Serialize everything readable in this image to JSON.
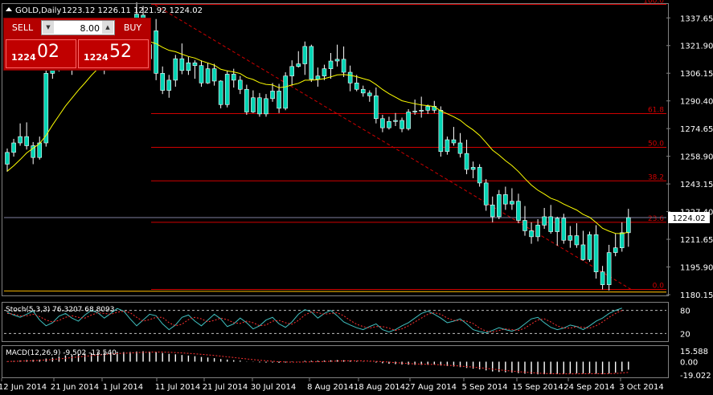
{
  "header": {
    "symbol": "GOLD,Daily",
    "ohlc": "1223.12 1226.11 1221.92 1224.02"
  },
  "trade_panel": {
    "sell_label": "SELL",
    "buy_label": "BUY",
    "lot": "8.00",
    "sell_small": "1224",
    "sell_big": "02",
    "buy_small": "1224",
    "buy_big": "52"
  },
  "colors": {
    "bull": "#00d4b4",
    "bear": "#00d4b4",
    "ma": "#ffff00",
    "fib": "#d00000",
    "trend": "#d00000",
    "stoch_main": "#40c0c0",
    "stoch_signal": "#ff3030",
    "macd_hist": "#ffffff",
    "macd_signal": "#ff3030",
    "bid_line": "#8080a0"
  },
  "chart_data": {
    "type": "candlestick",
    "price_axis": {
      "labels": [
        "1337.65",
        "1321.90",
        "1306.15",
        "1290.40",
        "1274.65",
        "1258.90",
        "1243.15",
        "1227.40",
        "1211.65",
        "1195.90",
        "1180.15"
      ],
      "min": 1180.15,
      "max": 1346.0
    },
    "current_price": "1224.02",
    "time_labels": [
      "12 Jun 2014",
      "21 Jun 2014",
      "1 Jul 2014",
      "11 Jul 2014",
      "21 Jul 2014",
      "30 Jul 2014",
      "8 Aug 2014",
      "18 Aug 2014",
      "27 Aug 2014",
      "5 Sep 2014",
      "15 Sep 2014",
      "24 Sep 2014",
      "3 Oct 2014"
    ],
    "fib_levels": [
      {
        "label": "100.0",
        "price": 1345.3
      },
      {
        "label": "61.8",
        "price": 1283.2
      },
      {
        "label": "50.0",
        "price": 1264.0
      },
      {
        "label": "38.2",
        "price": 1244.9
      },
      {
        "label": "23.6",
        "price": 1221.3
      },
      {
        "label": "0.0",
        "price": 1183.1
      }
    ],
    "candles": [
      [
        1254.4,
        1263.3,
        1250.1,
        1261.1
      ],
      [
        1261.1,
        1268.8,
        1258.7,
        1266.5
      ],
      [
        1266.5,
        1277.6,
        1264.9,
        1270.1
      ],
      [
        1270.1,
        1278.2,
        1262.7,
        1264.9
      ],
      [
        1264.9,
        1267.0,
        1254.4,
        1258.2
      ],
      [
        1258.2,
        1270.1,
        1257.0,
        1266.5
      ],
      [
        1266.5,
        1311.5,
        1264.4,
        1306.1
      ],
      [
        1306.1,
        1320.3,
        1303.0,
        1316.6
      ],
      [
        1316.6,
        1321.9,
        1307.2,
        1312.1
      ],
      [
        1312.1,
        1324.2,
        1310.0,
        1319.8
      ],
      [
        1319.8,
        1323.6,
        1305.2,
        1315.0
      ],
      [
        1315.0,
        1324.2,
        1311.5,
        1319.8
      ],
      [
        1319.8,
        1321.4,
        1310.5,
        1317.1
      ],
      [
        1317.1,
        1329.2,
        1313.1,
        1322.4
      ],
      [
        1322.4,
        1331.3,
        1319.8,
        1324.2
      ],
      [
        1324.2,
        1325.3,
        1305.6,
        1320.3
      ],
      [
        1320.3,
        1330.3,
        1316.1,
        1327.0
      ],
      [
        1327.0,
        1331.8,
        1315.5,
        1320.9
      ],
      [
        1320.9,
        1326.4,
        1310.5,
        1314.1
      ],
      [
        1314.1,
        1330.3,
        1308.7,
        1327.7
      ],
      [
        1327.0,
        1346.5,
        1322.4,
        1339.8
      ],
      [
        1339.2,
        1344.4,
        1320.3,
        1322.4
      ],
      [
        1322.4,
        1329.7,
        1312.1,
        1314.4
      ],
      [
        1330.3,
        1337.0,
        1302.2,
        1306.1
      ],
      [
        1306.1,
        1310.0,
        1294.3,
        1296.4
      ],
      [
        1296.4,
        1305.2,
        1292.2,
        1302.2
      ],
      [
        1302.2,
        1316.6,
        1298.5,
        1314.4
      ],
      [
        1314.4,
        1323.1,
        1305.6,
        1307.7
      ],
      [
        1307.7,
        1315.5,
        1305.2,
        1312.1
      ],
      [
        1312.1,
        1313.5,
        1303.0,
        1310.5
      ],
      [
        1310.5,
        1313.5,
        1298.5,
        1300.6
      ],
      [
        1300.6,
        1312.1,
        1300.1,
        1308.7
      ],
      [
        1308.7,
        1311.5,
        1299.1,
        1301.7
      ],
      [
        1301.7,
        1302.2,
        1286.2,
        1288.3
      ],
      [
        1288.3,
        1307.7,
        1286.7,
        1305.6
      ],
      [
        1305.6,
        1308.7,
        1298.0,
        1302.2
      ],
      [
        1302.2,
        1304.6,
        1294.3,
        1297.0
      ],
      [
        1297.0,
        1299.6,
        1282.5,
        1284.1
      ],
      [
        1284.1,
        1296.4,
        1283.5,
        1292.2
      ],
      [
        1292.2,
        1294.9,
        1281.4,
        1283.0
      ],
      [
        1283.0,
        1294.3,
        1281.4,
        1291.7
      ],
      [
        1291.7,
        1300.6,
        1289.9,
        1296.0
      ],
      [
        1296.0,
        1300.1,
        1283.5,
        1286.2
      ],
      [
        1286.2,
        1306.7,
        1285.1,
        1304.6
      ],
      [
        1304.6,
        1313.5,
        1299.1,
        1310.0
      ],
      [
        1310.0,
        1318.7,
        1309.4,
        1311.5
      ],
      [
        1311.5,
        1324.2,
        1305.2,
        1321.4
      ],
      [
        1321.4,
        1322.4,
        1301.2,
        1302.7
      ],
      [
        1302.7,
        1309.4,
        1298.5,
        1304.6
      ],
      [
        1304.6,
        1311.0,
        1302.2,
        1308.7
      ],
      [
        1308.7,
        1317.7,
        1303.0,
        1313.1
      ],
      [
        1313.1,
        1322.4,
        1310.0,
        1314.1
      ],
      [
        1314.1,
        1321.4,
        1304.0,
        1306.7
      ],
      [
        1306.7,
        1310.5,
        1295.9,
        1300.6
      ],
      [
        1300.6,
        1305.2,
        1295.9,
        1297.0
      ],
      [
        1297.0,
        1299.1,
        1292.8,
        1294.9
      ],
      [
        1294.9,
        1296.4,
        1289.9,
        1293.3
      ],
      [
        1293.3,
        1298.0,
        1277.6,
        1280.3
      ],
      [
        1280.3,
        1282.5,
        1272.6,
        1275.1
      ],
      [
        1275.1,
        1281.4,
        1274.1,
        1278.7
      ],
      [
        1278.7,
        1283.5,
        1276.1,
        1279.3
      ],
      [
        1279.3,
        1280.9,
        1272.6,
        1274.6
      ],
      [
        1274.6,
        1285.7,
        1273.6,
        1284.1
      ],
      [
        1284.1,
        1291.2,
        1282.5,
        1284.6
      ],
      [
        1284.6,
        1292.8,
        1280.9,
        1285.1
      ],
      [
        1285.1,
        1288.3,
        1283.0,
        1287.3
      ],
      [
        1287.3,
        1290.4,
        1283.5,
        1285.1
      ],
      [
        1285.1,
        1287.3,
        1258.7,
        1261.6
      ],
      [
        1261.6,
        1270.1,
        1259.8,
        1268.3
      ],
      [
        1268.3,
        1275.6,
        1264.9,
        1266.5
      ],
      [
        1266.5,
        1272.1,
        1258.2,
        1260.5
      ],
      [
        1260.5,
        1268.3,
        1248.7,
        1251.4
      ],
      [
        1251.4,
        1255.9,
        1246.4,
        1252.6
      ],
      [
        1252.6,
        1254.4,
        1241.6,
        1243.7
      ],
      [
        1243.7,
        1245.9,
        1227.9,
        1231.2
      ],
      [
        1231.2,
        1236.0,
        1221.3,
        1224.5
      ],
      [
        1224.5,
        1239.7,
        1223.1,
        1237.1
      ],
      [
        1237.1,
        1241.6,
        1228.4,
        1231.7
      ],
      [
        1231.7,
        1240.7,
        1228.4,
        1233.3
      ],
      [
        1233.3,
        1237.6,
        1220.8,
        1222.4
      ],
      [
        1222.4,
        1230.6,
        1213.7,
        1216.5
      ],
      [
        1216.5,
        1221.3,
        1209.1,
        1213.1
      ],
      [
        1213.1,
        1223.1,
        1210.5,
        1219.7
      ],
      [
        1219.7,
        1229.5,
        1217.6,
        1224.5
      ],
      [
        1224.5,
        1231.2,
        1214.8,
        1216.0
      ],
      [
        1216.0,
        1224.5,
        1208.0,
        1223.6
      ],
      [
        1223.6,
        1226.2,
        1209.1,
        1211.1
      ],
      [
        1211.1,
        1219.2,
        1206.8,
        1213.7
      ],
      [
        1213.7,
        1220.8,
        1206.8,
        1208.5
      ],
      [
        1208.5,
        1216.5,
        1199.5,
        1200.1
      ],
      [
        1200.1,
        1216.0,
        1198.8,
        1214.3
      ],
      [
        1214.3,
        1219.7,
        1189.3,
        1193.1
      ],
      [
        1193.1,
        1196.5,
        1183.1,
        1185.8
      ],
      [
        1185.8,
        1208.5,
        1182.5,
        1204.1
      ],
      [
        1204.1,
        1214.8,
        1202.0,
        1206.8
      ],
      [
        1206.8,
        1221.3,
        1204.6,
        1215.4
      ],
      [
        1215.4,
        1229.0,
        1207.4,
        1224.0
      ]
    ],
    "ma_values": [
      1250.4,
      1253.5,
      1257.0,
      1260.8,
      1263.5,
      1266.1,
      1270.8,
      1276.7,
      1282.1,
      1287.5,
      1292.0,
      1296.5,
      1300.6,
      1304.9,
      1308.7,
      1311.9,
      1314.5,
      1317.0,
      1318.2,
      1319.8,
      1322.9,
      1324.1,
      1324.1,
      1323.0,
      1320.9,
      1319.2,
      1318.4,
      1317.0,
      1315.7,
      1314.8,
      1313.2,
      1312.0,
      1310.7,
      1308.4,
      1307.5,
      1306.9,
      1306.0,
      1303.7,
      1302.6,
      1300.8,
      1299.8,
      1299.5,
      1297.9,
      1298.4,
      1299.5,
      1300.4,
      1302.2,
      1302.2,
      1302.5,
      1303.1,
      1304.1,
      1305.2,
      1305.4,
      1305.0,
      1304.2,
      1303.1,
      1302.1,
      1299.7,
      1296.9,
      1294.5,
      1292.5,
      1290.5,
      1289.6,
      1288.8,
      1288.1,
      1287.7,
      1287.2,
      1284.7,
      1283.1,
      1281.4,
      1279.4,
      1276.4,
      1273.9,
      1270.8,
      1266.7,
      1262.4,
      1259.6,
      1256.4,
      1253.6,
      1250.2,
      1246.2,
      1242.5,
      1239.6,
      1237.4,
      1235.0,
      1233.7,
      1231.7,
      1230.0,
      1228.3,
      1225.8,
      1224.2,
      1221.2,
      1217.9,
      1216.3,
      1215.0,
      1214.9,
      1215.7
    ]
  },
  "stoch": {
    "label": "Stoch(5,3,3) 76.3207 68.8093",
    "ticks": [
      "80",
      "20"
    ],
    "main": [
      75,
      68,
      62,
      70,
      78,
      55,
      40,
      48,
      65,
      72,
      60,
      52,
      68,
      80,
      74,
      60,
      72,
      85,
      78,
      58,
      40,
      55,
      70,
      66,
      45,
      30,
      42,
      62,
      68,
      52,
      40,
      55,
      70,
      58,
      38,
      45,
      60,
      48,
      32,
      40,
      55,
      62,
      45,
      36,
      50,
      70,
      82,
      76,
      60,
      72,
      80,
      66,
      50,
      42,
      35,
      30,
      38,
      45,
      30,
      24,
      30,
      40,
      48,
      60,
      72,
      78,
      70,
      60,
      48,
      52,
      58,
      45,
      30,
      25,
      22,
      28,
      35,
      30,
      26,
      32,
      45,
      58,
      62,
      48,
      36,
      30,
      34,
      42,
      38,
      30,
      40,
      52,
      60,
      72,
      80,
      86
    ],
    "signal": [
      72,
      70,
      66,
      66,
      70,
      64,
      55,
      50,
      54,
      62,
      66,
      62,
      60,
      68,
      74,
      72,
      70,
      75,
      78,
      74,
      62,
      52,
      56,
      62,
      62,
      48,
      40,
      44,
      56,
      62,
      58,
      50,
      54,
      60,
      56,
      48,
      46,
      52,
      48,
      40,
      42,
      52,
      54,
      48,
      44,
      54,
      68,
      76,
      74,
      70,
      72,
      74,
      66,
      54,
      44,
      38,
      34,
      38,
      38,
      34,
      28,
      32,
      40,
      50,
      60,
      70,
      74,
      70,
      60,
      54,
      54,
      52,
      46,
      34,
      26,
      24,
      28,
      32,
      30,
      28,
      34,
      45,
      55,
      58,
      50,
      40,
      34,
      34,
      38,
      36,
      34,
      40,
      50,
      62,
      72,
      80
    ]
  },
  "macd": {
    "label": "MACD(12,26,9) -9.502 -13.540",
    "ticks": [
      "15.588",
      "0.00",
      "-19.022"
    ],
    "min": -19.022,
    "max": 15.588,
    "hist": [
      0.5,
      1.0,
      1.7,
      2.3,
      2.6,
      3.0,
      4.5,
      6.0,
      7.6,
      9.0,
      10.0,
      11.0,
      11.8,
      12.4,
      13.0,
      13.4,
      13.7,
      14.0,
      13.8,
      13.9,
      14.6,
      15.0,
      14.5,
      13.9,
      12.5,
      11.3,
      10.6,
      9.6,
      8.8,
      7.9,
      6.8,
      6.0,
      5.1,
      3.8,
      3.0,
      2.2,
      1.5,
      0.3,
      -0.3,
      -1.0,
      -1.3,
      -1.2,
      -1.6,
      -1.2,
      -0.5,
      0.2,
      1.2,
      1.3,
      1.4,
      1.6,
      2.0,
      2.3,
      2.1,
      1.6,
      1.0,
      0.4,
      -0.2,
      -1.2,
      -2.2,
      -3.0,
      -3.5,
      -4.0,
      -4.3,
      -4.5,
      -4.5,
      -4.4,
      -4.3,
      -5.5,
      -6.2,
      -6.9,
      -7.8,
      -9.0,
      -10.0,
      -11.0,
      -12.5,
      -14.0,
      -14.7,
      -15.2,
      -15.6,
      -16.4,
      -17.2,
      -17.8,
      -18.1,
      -18.0,
      -17.9,
      -17.6,
      -17.4,
      -17.0,
      -16.8,
      -17.0,
      -16.6,
      -17.3,
      -18.0,
      -17.0,
      -15.8,
      -13.8,
      -11.5
    ],
    "signal": [
      0.3,
      0.5,
      0.8,
      1.2,
      1.5,
      1.9,
      2.4,
      3.2,
      4.0,
      4.9,
      5.9,
      6.9,
      7.8,
      8.7,
      9.5,
      10.3,
      11.0,
      11.6,
      12.2,
      12.6,
      13.0,
      13.4,
      13.7,
      13.9,
      13.8,
      13.5,
      13.1,
      12.6,
      12.0,
      11.3,
      10.6,
      9.8,
      9.0,
      8.0,
      7.0,
      6.0,
      5.0,
      4.0,
      3.0,
      2.1,
      1.3,
      0.6,
      0.0,
      -0.4,
      -0.6,
      -0.6,
      -0.4,
      -0.2,
      0.0,
      0.3,
      0.6,
      0.9,
      1.1,
      1.2,
      1.2,
      1.1,
      0.9,
      0.5,
      0.0,
      -0.6,
      -1.3,
      -2.0,
      -2.6,
      -3.1,
      -3.5,
      -3.8,
      -4.0,
      -4.5,
      -5.0,
      -5.6,
      -6.3,
      -7.0,
      -7.8,
      -8.7,
      -9.6,
      -10.6,
      -11.6,
      -12.6,
      -13.5,
      -14.3,
      -15.1,
      -15.8,
      -16.4,
      -16.9,
      -17.2,
      -17.4,
      -17.5,
      -17.5,
      -17.4,
      -17.3,
      -17.2,
      -17.2,
      -17.3,
      -17.2,
      -16.9,
      -16.3,
      -15.4
    ]
  }
}
